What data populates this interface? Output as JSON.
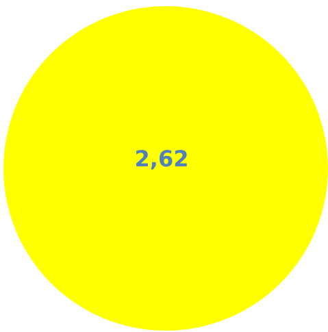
{
  "chart_data": {
    "type": "pie",
    "categories": [
      null
    ],
    "values": [
      2.62
    ],
    "value_labels": [
      "2,62"
    ],
    "colors": [
      "#ffff00"
    ],
    "label_color": "#4f81bd"
  }
}
